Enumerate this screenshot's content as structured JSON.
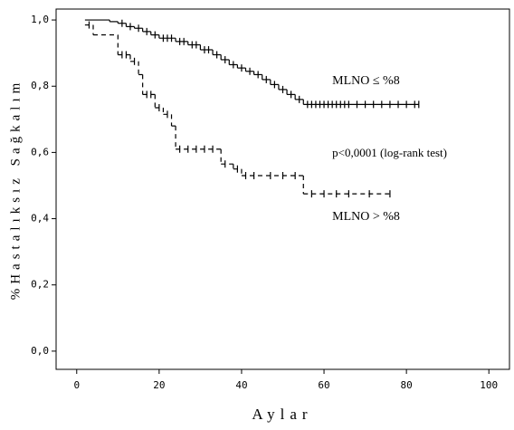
{
  "chart_data": {
    "type": "km",
    "xlabel": "Aylar",
    "ylabel": "%Hastalıksız Sağkalım",
    "xlim": [
      -5,
      105
    ],
    "ylim": [
      -0.055,
      1.033
    ],
    "xticks": [
      0,
      20,
      40,
      60,
      80,
      100
    ],
    "yticks": [
      {
        "value": 0,
        "label": "0,0"
      },
      {
        "value": 0.2,
        "label": "0,2"
      },
      {
        "value": 0.4,
        "label": "0,4"
      },
      {
        "value": 0.6,
        "label": "0,6"
      },
      {
        "value": 0.8,
        "label": "0,8"
      },
      {
        "value": 1,
        "label": "1,0"
      }
    ],
    "annotations": [
      {
        "text": "p<0,0001 (log-rank test)",
        "x": 62,
        "y": 0.595
      }
    ],
    "series": [
      {
        "name": "MLNO ≤ %8",
        "color": "#000000",
        "line_style": "solid",
        "label_x": 62,
        "label_y": 0.815,
        "x": [
          2,
          8,
          10,
          12,
          14,
          16,
          18,
          20,
          24,
          27,
          30,
          33,
          35,
          37,
          39,
          41,
          43,
          45,
          47,
          49,
          51,
          53,
          55,
          83
        ],
        "values": [
          1.0,
          0.995,
          0.99,
          0.98,
          0.975,
          0.965,
          0.955,
          0.945,
          0.935,
          0.925,
          0.91,
          0.895,
          0.88,
          0.865,
          0.855,
          0.845,
          0.835,
          0.82,
          0.805,
          0.79,
          0.775,
          0.76,
          0.745,
          0.745
        ],
        "censor": [
          11,
          13,
          15,
          17,
          19,
          21,
          22,
          23,
          25,
          26,
          28,
          29,
          31,
          32,
          34,
          36,
          38,
          40,
          42,
          44,
          46,
          48,
          50,
          52,
          54,
          56,
          57,
          58,
          59,
          60,
          61,
          62,
          63,
          64,
          65,
          66,
          68,
          70,
          72,
          74,
          76,
          78,
          80,
          82,
          83
        ]
      },
      {
        "name": "MLNO > %8",
        "color": "#000000",
        "line_style": "dashed",
        "label_x": 62,
        "label_y": 0.405,
        "x": [
          2,
          4,
          10,
          13,
          15,
          16,
          19,
          21,
          23,
          24,
          35,
          38,
          40,
          55,
          76
        ],
        "values": [
          0.985,
          0.955,
          0.895,
          0.875,
          0.835,
          0.775,
          0.735,
          0.715,
          0.68,
          0.61,
          0.565,
          0.55,
          0.53,
          0.475,
          0.475
        ],
        "censor": [
          3,
          11,
          12,
          14,
          17,
          18,
          20,
          22,
          25,
          27,
          29,
          31,
          33,
          36,
          39,
          41,
          43,
          47,
          50,
          53,
          57,
          60,
          63,
          66,
          71,
          76
        ]
      }
    ]
  }
}
